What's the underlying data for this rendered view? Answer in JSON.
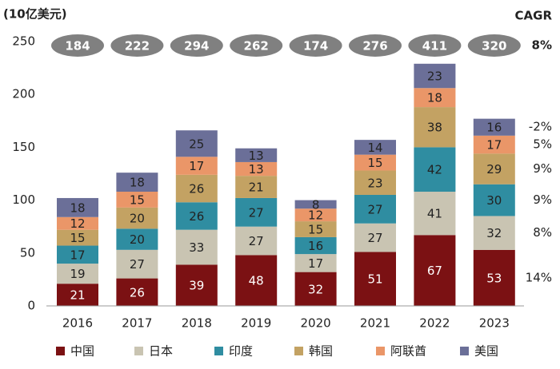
{
  "chart_data": {
    "type": "stacked_bar",
    "unit_label": "(10亿美元)",
    "categories": [
      "2016",
      "2017",
      "2018",
      "2019",
      "2020",
      "2021",
      "2022",
      "2023"
    ],
    "series": [
      {
        "name": "中国",
        "color": "#7b1113",
        "label_color": "#ffffff",
        "cagr": "14%",
        "values": [
          21,
          26,
          39,
          48,
          32,
          51,
          67,
          53
        ]
      },
      {
        "name": "日本",
        "color": "#c9c4b2",
        "label_color": "#222222",
        "cagr": "8%",
        "values": [
          19,
          27,
          33,
          27,
          17,
          27,
          41,
          32
        ]
      },
      {
        "name": "印度",
        "color": "#2f8da1",
        "label_color": "#222222",
        "cagr": "9%",
        "values": [
          17,
          20,
          26,
          27,
          16,
          27,
          42,
          30
        ]
      },
      {
        "name": "韩国",
        "color": "#c3a263",
        "label_color": "#222222",
        "cagr": "9%",
        "values": [
          15,
          20,
          26,
          21,
          15,
          23,
          38,
          29
        ]
      },
      {
        "name": "阿联酋",
        "color": "#ea9668",
        "label_color": "#222222",
        "cagr": "5%",
        "values": [
          12,
          15,
          17,
          13,
          12,
          15,
          18,
          17
        ]
      },
      {
        "name": "美国",
        "color": "#6b6f98",
        "label_color": "#222222",
        "cagr": "-2%",
        "values": [
          18,
          18,
          25,
          13,
          8,
          14,
          23,
          16
        ]
      }
    ],
    "top_labels": [
      184,
      222,
      294,
      262,
      174,
      276,
      411,
      320
    ],
    "cagr_title": "CAGR",
    "cagr_total": "8%",
    "ylim": [
      0,
      250
    ],
    "yticks": [
      0,
      50,
      100,
      150,
      200,
      250
    ],
    "grid": false
  }
}
